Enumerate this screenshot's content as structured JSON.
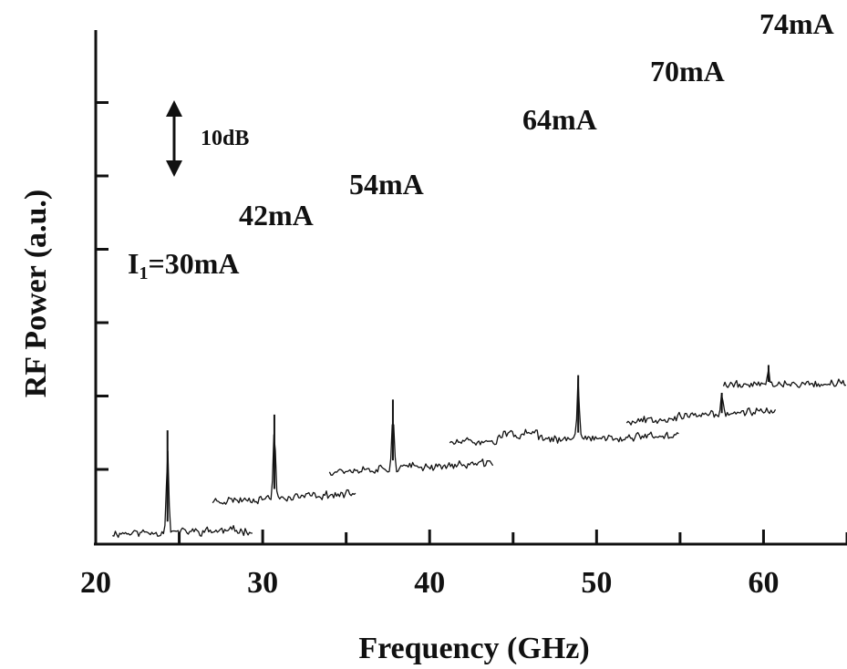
{
  "chart_data": {
    "type": "line",
    "xlabel": "Frequency (GHz)",
    "ylabel": "RF Power (a.u.)",
    "xlim": [
      20,
      65
    ],
    "x_ticks": [
      "20",
      "30",
      "40",
      "50",
      "60"
    ],
    "y_ticks": 6,
    "grid": false,
    "scale_bar": {
      "label": "10dB"
    },
    "series": [
      {
        "name": "I1=30mA",
        "label_main": "I",
        "label_sub": "1",
        "label_rest": "=30mA",
        "x_start": 21.0,
        "x_end": 29.4,
        "baseline_start": -5.6,
        "baseline_end": -4.8,
        "peak_x": 24.3,
        "peak_rise": 27,
        "seed": 11
      },
      {
        "name": "42mA",
        "x_start": 27.0,
        "x_end": 35.6,
        "baseline_start": 3.0,
        "baseline_end": 5.0,
        "peak_x": 30.7,
        "peak_rise": 22,
        "seed": 23
      },
      {
        "name": "54mA",
        "x_start": 34.0,
        "x_end": 43.8,
        "baseline_start": 11.0,
        "baseline_end": 13.0,
        "peak_x": 37.8,
        "peak_rise": 18,
        "seed": 37
      },
      {
        "name": "64mA",
        "x_start": 41.2,
        "x_end": 55.0,
        "baseline_start": 18.5,
        "baseline_end": 20.5,
        "peak_x": 48.9,
        "peak_rise": 17,
        "seed": 51,
        "bump": {
          "from": 44.0,
          "to": 46.5,
          "amount": 1.7
        }
      },
      {
        "name": "70mA",
        "x_start": 51.8,
        "x_end": 60.8,
        "baseline_start": 24.3,
        "baseline_end": 27.3,
        "peak_x": 57.5,
        "peak_rise": 6,
        "seed": 67
      },
      {
        "name": "74mA",
        "x_start": 57.6,
        "x_end": 65.0,
        "baseline_start": 34.0,
        "baseline_end": 34.4,
        "peak_x": 60.3,
        "peak_rise": 5,
        "seed": 79
      }
    ]
  }
}
